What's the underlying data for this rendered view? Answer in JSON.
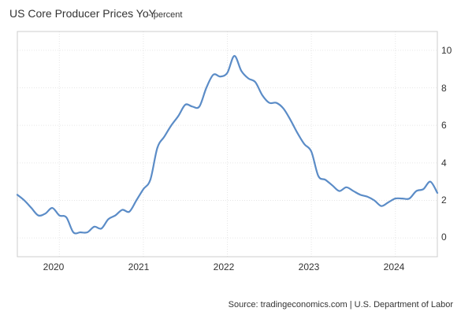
{
  "chart_data": {
    "type": "line",
    "title": "US Core Producer Prices YoY",
    "subtitle": "- percent",
    "source": "Source: tradingeconomics.com | U.S. Department of Labor",
    "x_ticks": [
      "2020",
      "2021",
      "2022",
      "2023",
      "2024"
    ],
    "y_ticks": [
      "0",
      "2",
      "4",
      "6",
      "8",
      "10"
    ],
    "xlim": [
      "2019-07",
      "2024-07"
    ],
    "ylim": [
      -1,
      11
    ],
    "grid": true,
    "legend": "none",
    "series": [
      {
        "color": "#5b8cc7",
        "x": [
          "2019-07",
          "2019-08",
          "2019-09",
          "2019-10",
          "2019-11",
          "2019-12",
          "2020-01",
          "2020-02",
          "2020-03",
          "2020-04",
          "2020-05",
          "2020-06",
          "2020-07",
          "2020-08",
          "2020-09",
          "2020-10",
          "2020-11",
          "2020-12",
          "2021-01",
          "2021-02",
          "2021-03",
          "2021-04",
          "2021-05",
          "2021-06",
          "2021-07",
          "2021-08",
          "2021-09",
          "2021-10",
          "2021-11",
          "2021-12",
          "2022-01",
          "2022-02",
          "2022-03",
          "2022-04",
          "2022-05",
          "2022-06",
          "2022-07",
          "2022-08",
          "2022-09",
          "2022-10",
          "2022-11",
          "2022-12",
          "2023-01",
          "2023-02",
          "2023-03",
          "2023-04",
          "2023-05",
          "2023-06",
          "2023-07",
          "2023-08",
          "2023-09",
          "2023-10",
          "2023-11",
          "2023-12",
          "2024-01",
          "2024-02",
          "2024-03",
          "2024-04",
          "2024-05",
          "2024-06",
          "2024-07"
        ],
        "values": [
          2.3,
          2.0,
          1.6,
          1.2,
          1.3,
          1.6,
          1.2,
          1.1,
          0.3,
          0.3,
          0.3,
          0.6,
          0.5,
          1.0,
          1.2,
          1.5,
          1.4,
          2.0,
          2.6,
          3.1,
          4.8,
          5.4,
          6.0,
          6.5,
          7.1,
          7.0,
          7.0,
          8.0,
          8.7,
          8.6,
          8.8,
          9.7,
          8.9,
          8.5,
          8.3,
          7.6,
          7.2,
          7.2,
          6.9,
          6.3,
          5.6,
          5.0,
          4.6,
          3.3,
          3.1,
          2.8,
          2.5,
          2.7,
          2.5,
          2.3,
          2.2,
          2.0,
          1.7,
          1.9,
          2.1,
          2.1,
          2.1,
          2.5,
          2.6,
          3.0,
          2.4
        ]
      }
    ]
  }
}
